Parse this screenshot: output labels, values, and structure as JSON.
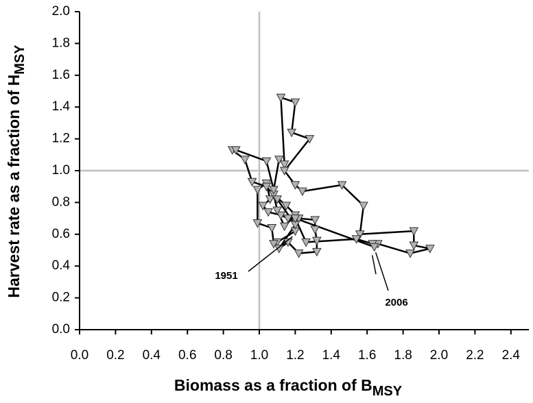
{
  "chart_data": {
    "type": "scatter",
    "x_label": "Biomass as a fraction of B",
    "x_label_sub": "MSY",
    "y_label": "Harvest rate as a fraction of H",
    "y_label_sub": "MSY",
    "xlim": [
      0,
      2.5
    ],
    "ylim": [
      0,
      2
    ],
    "xticks": [
      {
        "value": 0,
        "label": "0.0"
      },
      0.2,
      0.4,
      0.6,
      0.8,
      {
        "value": 1,
        "label": "1.0"
      },
      1.2,
      1.4,
      1.6,
      1.8,
      {
        "value": 2,
        "label": "2.0"
      },
      2.2,
      2.4
    ],
    "yticks": [
      {
        "value": 0,
        "label": "0.0"
      },
      0.2,
      0.4,
      0.6,
      0.8,
      {
        "value": 1,
        "label": "1.0"
      },
      1.2,
      1.4,
      1.6,
      1.8,
      {
        "value": 2,
        "label": "2.0"
      }
    ],
    "reference_lines": {
      "x": 1,
      "y": 1
    },
    "line_color": "#000000",
    "marker_color": "#b3b3b3",
    "reference_color": "#bfbfbf",
    "series": [
      {
        "x": [
          1.2,
          1.1,
          1.08,
          1.07,
          0.99,
          0.99,
          1.04,
          1.06,
          1.02,
          1.05,
          1.12,
          1.16,
          1.2,
          1.14,
          1.1,
          1.08,
          1.15,
          1.22,
          1.31,
          1.31,
          1.32,
          1.32,
          1.22,
          1.16,
          1.11,
          1.2,
          1.1,
          1.04,
          0.96,
          0.92,
          0.85,
          0.87,
          1.04,
          1.08,
          1.11,
          1.14,
          1.12,
          1.2,
          1.18,
          1.28,
          1.14,
          1.2,
          1.24,
          1.46,
          1.58,
          1.56,
          1.86,
          1.86,
          1.95,
          1.84,
          1.66,
          1.63,
          1.54,
          1.26,
          1.2,
          1.64
        ],
        "values": [
          0.62,
          0.55,
          0.54,
          0.64,
          0.67,
          0.88,
          0.92,
          0.82,
          0.78,
          0.74,
          0.72,
          0.7,
          0.72,
          0.65,
          0.75,
          0.85,
          0.78,
          0.7,
          0.69,
          0.63,
          0.56,
          0.49,
          0.48,
          0.55,
          0.51,
          0.66,
          0.82,
          0.9,
          0.93,
          1.07,
          1.13,
          1.13,
          1.06,
          0.88,
          1.07,
          1.04,
          1.46,
          1.43,
          1.24,
          1.2,
          1.0,
          0.91,
          0.87,
          0.91,
          0.78,
          0.6,
          0.62,
          0.53,
          0.51,
          0.48,
          0.54,
          0.54,
          0.57,
          0.55,
          0.7,
          0.52
        ]
      }
    ],
    "annotations": [
      {
        "text": "1951",
        "index": 0
      },
      {
        "text": "2006",
        "index": 55
      }
    ]
  }
}
